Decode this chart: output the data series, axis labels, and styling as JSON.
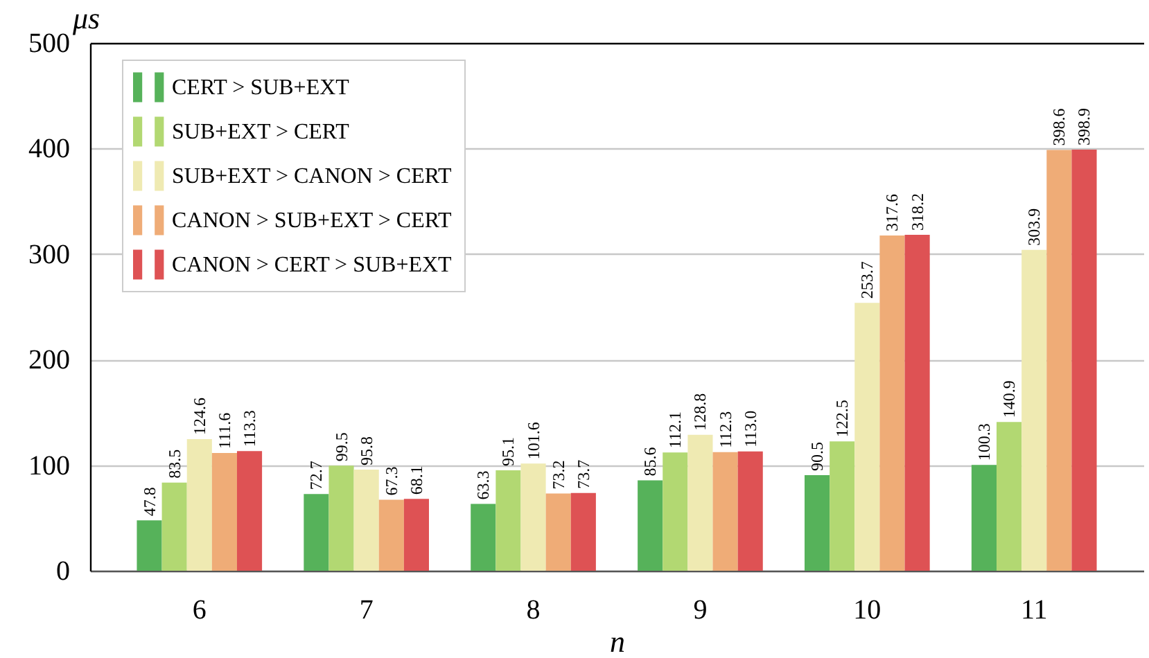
{
  "chart_data": {
    "type": "bar",
    "xlabel": "n",
    "ylabel": "μs",
    "categories": [
      "6",
      "7",
      "8",
      "9",
      "10",
      "11"
    ],
    "series": [
      {
        "name": "CERT > SUB+EXT",
        "color": "#56b25a",
        "values": [
          47.8,
          72.7,
          63.3,
          85.6,
          90.5,
          100.3
        ],
        "value_labels": [
          "47.8",
          "72.7",
          "63.3",
          "85.6",
          "90.5",
          "100.3"
        ]
      },
      {
        "name": "SUB+EXT > CERT",
        "color": "#b2d872",
        "values": [
          83.5,
          99.5,
          95.1,
          112.1,
          122.5,
          140.9
        ],
        "value_labels": [
          "83.5",
          "99.5",
          "95.1",
          "112.1",
          "122.5",
          "140.9"
        ]
      },
      {
        "name": "SUB+EXT > CANON > CERT",
        "color": "#efeab2",
        "values": [
          124.6,
          95.8,
          101.6,
          128.8,
          253.7,
          303.9
        ],
        "value_labels": [
          "124.6",
          "95.8",
          "101.6",
          "128.8",
          "253.7",
          "303.9"
        ]
      },
      {
        "name": "CANON > SUB+EXT > CERT",
        "color": "#efac77",
        "values": [
          111.6,
          67.3,
          73.2,
          112.3,
          317.6,
          398.6
        ],
        "value_labels": [
          "111.6",
          "67.3",
          "73.2",
          "112.3",
          "317.6",
          "398.6"
        ]
      },
      {
        "name": "CANON > CERT > SUB+EXT",
        "color": "#de5254",
        "values": [
          113.3,
          68.1,
          73.7,
          113.0,
          318.2,
          398.9
        ],
        "value_labels": [
          "113.3",
          "68.1",
          "73.7",
          "113.0",
          "318.2",
          "398.9"
        ]
      }
    ],
    "ylim": [
      0,
      500
    ],
    "yticks": [
      0,
      100,
      200,
      300,
      400,
      500
    ],
    "grid": "y",
    "legend": "top left"
  }
}
